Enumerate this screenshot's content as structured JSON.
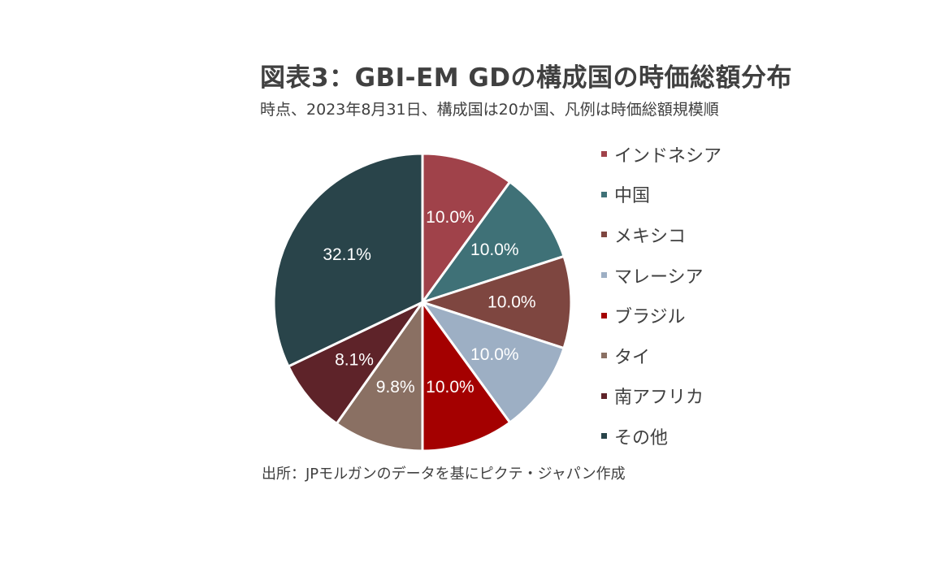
{
  "header": {
    "title": "図表3：GBI-EM GDの構成国の時価総額分布",
    "subtitle": "時点、2023年8月31日、構成国は20か国、凡例は時価総額規模順"
  },
  "footer": {
    "source": "出所：JPモルガンのデータを基にピクテ・ジャパン作成"
  },
  "chart_data": {
    "type": "pie",
    "title": "図表3：GBI-EM GDの構成国の時価総額分布",
    "subtitle": "時点、2023年8月31日、構成国は20か国、凡例は時価総額規模順",
    "legend_position": "right",
    "start_angle": "12 o'clock",
    "direction": "clockwise",
    "slices": [
      {
        "label": "インドネシア",
        "value": 10.0,
        "display": "10.0%",
        "color": "#A0424A"
      },
      {
        "label": "中国",
        "value": 10.0,
        "display": "10.0%",
        "color": "#3F7177"
      },
      {
        "label": "メキシコ",
        "value": 10.0,
        "display": "10.0%",
        "color": "#7E4640"
      },
      {
        "label": "マレーシア",
        "value": 10.0,
        "display": "10.0%",
        "color": "#9DAFC4"
      },
      {
        "label": "ブラジル",
        "value": 10.0,
        "display": "10.0%",
        "color": "#A40000"
      },
      {
        "label": "タイ",
        "value": 9.8,
        "display": "9.8%",
        "color": "#8A7063"
      },
      {
        "label": "南アフリカ",
        "value": 8.1,
        "display": "8.1%",
        "color": "#5E2329"
      },
      {
        "label": "その他",
        "value": 32.1,
        "display": "32.1%",
        "color": "#29444A"
      }
    ]
  }
}
